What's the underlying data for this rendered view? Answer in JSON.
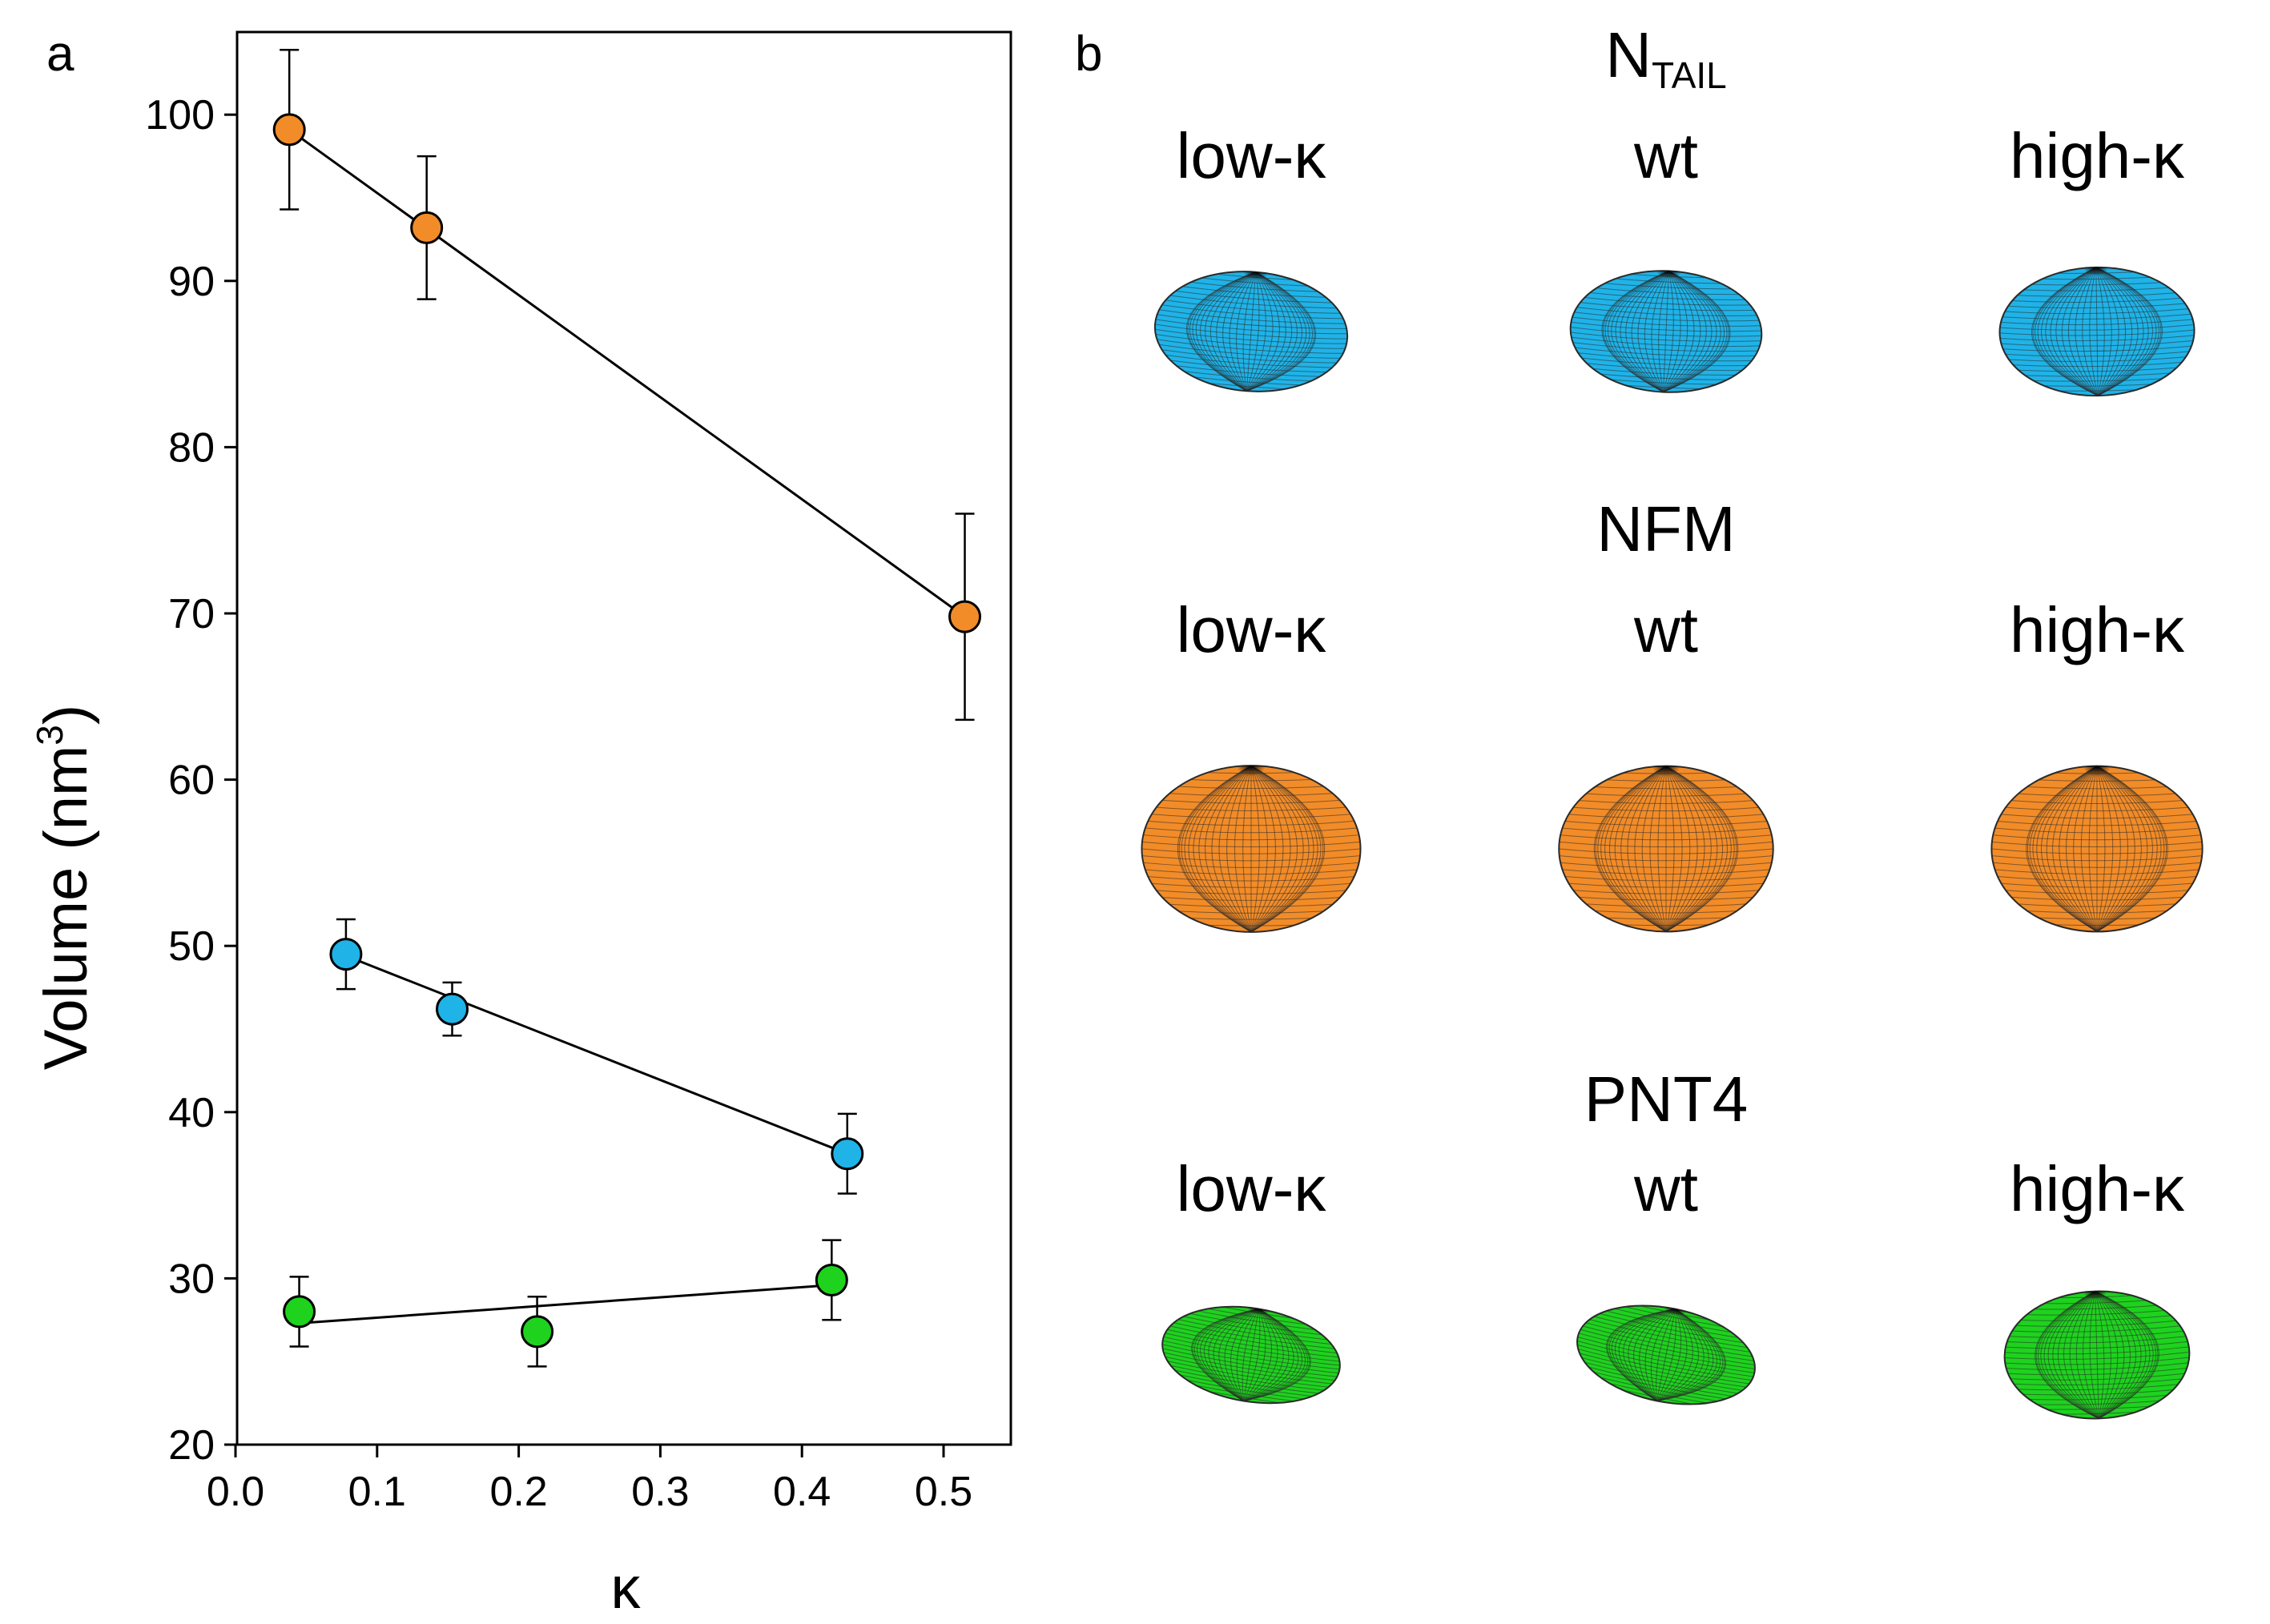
{
  "panel_a_label": "a",
  "panel_b_label": "b",
  "colors": {
    "orange": "#F28C28",
    "blue": "#1FB3E8",
    "green": "#1ED21E",
    "mesh": "#2a2a2a",
    "axis": "#000000"
  },
  "chart_data": {
    "type": "scatter",
    "xlabel": "κ",
    "ylabel_main": "Volume (nm",
    "ylabel_sup": "3",
    "ylabel_end": ")",
    "xlim": [
      0.0,
      0.55
    ],
    "ylim": [
      20,
      105
    ],
    "xticks": [
      0.0,
      0.1,
      0.2,
      0.3,
      0.4,
      0.5
    ],
    "xtick_labels": [
      "0.0",
      "0.1",
      "0.2",
      "0.3",
      "0.4",
      "0.5"
    ],
    "yticks": [
      20,
      30,
      40,
      50,
      60,
      70,
      80,
      90,
      100
    ],
    "ytick_labels": [
      "20",
      "30",
      "40",
      "50",
      "60",
      "70",
      "80",
      "90",
      "100"
    ],
    "series": [
      {
        "name": "NFM",
        "color": "orange",
        "points": [
          {
            "x": 0.038,
            "y": 99.1,
            "err": 4.8
          },
          {
            "x": 0.135,
            "y": 93.2,
            "err": 4.3
          },
          {
            "x": 0.515,
            "y": 69.8,
            "err": 6.2
          }
        ],
        "fit": [
          [
            0.038,
            99.1
          ],
          [
            0.515,
            69.8
          ]
        ]
      },
      {
        "name": "NTAIL",
        "color": "blue",
        "points": [
          {
            "x": 0.078,
            "y": 49.5,
            "err": 2.1
          },
          {
            "x": 0.153,
            "y": 46.2,
            "err": 1.6
          },
          {
            "x": 0.432,
            "y": 37.5,
            "err": 2.4
          }
        ],
        "fit": [
          [
            0.078,
            49.4
          ],
          [
            0.432,
            37.5
          ]
        ]
      },
      {
        "name": "PNT4",
        "color": "green",
        "points": [
          {
            "x": 0.045,
            "y": 28.0,
            "err": 2.1
          },
          {
            "x": 0.213,
            "y": 26.8,
            "err": 2.1
          },
          {
            "x": 0.421,
            "y": 29.9,
            "err": 2.4
          }
        ],
        "fit": [
          [
            0.045,
            27.3
          ],
          [
            0.421,
            29.6
          ]
        ]
      }
    ]
  },
  "panel_b": {
    "column_labels": [
      "low-κ",
      "wt",
      "high-κ"
    ],
    "groups": [
      {
        "title_main": "N",
        "title_sub": "TAIL",
        "color": "blue",
        "ellipsoids": [
          {
            "rx": 0.512,
            "ry": 0.317,
            "tilt": 0.075
          },
          {
            "rx": 0.508,
            "ry": 0.322,
            "tilt": 0.045
          },
          {
            "rx": 0.517,
            "ry": 0.341,
            "tilt": -0.015
          }
        ]
      },
      {
        "title_main": "NFM",
        "title_sub": "",
        "color": "orange",
        "ellipsoids": [
          {
            "rx": 0.581,
            "ry": 0.442,
            "tilt": 0.0
          },
          {
            "rx": 0.569,
            "ry": 0.44,
            "tilt": 0.0
          },
          {
            "rx": 0.56,
            "ry": 0.44,
            "tilt": 0.0
          }
        ]
      },
      {
        "title_main": "PNT4",
        "title_sub": "",
        "color": "green",
        "ellipsoids": [
          {
            "rx": 0.476,
            "ry": 0.248,
            "tilt": 0.16
          },
          {
            "rx": 0.479,
            "ry": 0.249,
            "tilt": 0.2
          },
          {
            "rx": 0.491,
            "ry": 0.338,
            "tilt": -0.03
          }
        ]
      }
    ]
  }
}
